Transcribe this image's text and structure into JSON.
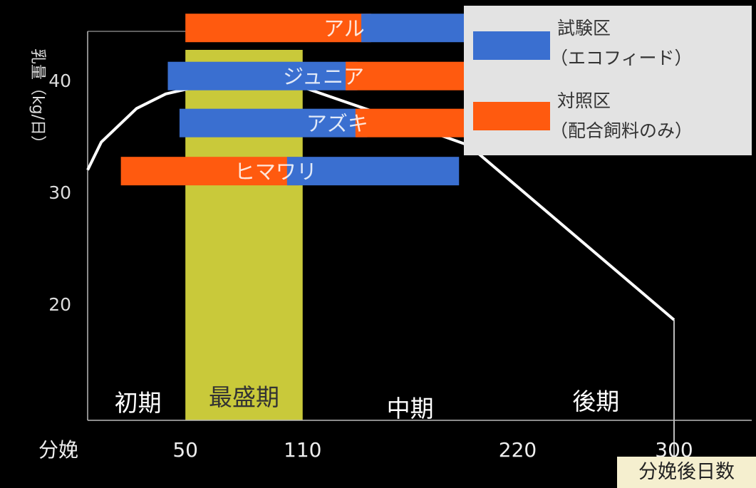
{
  "chart_data": {
    "type": "bar",
    "ylabel": "乳量（kg/日）",
    "xlabel": "分娩後日数",
    "x_ticks": [
      {
        "label": "分娩",
        "value": 0
      },
      {
        "label": "50",
        "value": 50
      },
      {
        "label": "110",
        "value": 110
      },
      {
        "label": "220",
        "value": 220
      },
      {
        "label": "300",
        "value": 300
      }
    ],
    "y_ticks": [
      20,
      30,
      40
    ],
    "ylim": [
      12,
      46
    ],
    "xlim": [
      0,
      300
    ],
    "phases": [
      {
        "label": "初期",
        "start": 0,
        "end": 50
      },
      {
        "label": "最盛期",
        "start": 50,
        "end": 110,
        "highlight": true
      },
      {
        "label": "中期",
        "start": 110,
        "end": 220
      },
      {
        "label": "後期",
        "start": 220,
        "end": 300
      }
    ],
    "lactation_curve": [
      [
        0,
        32
      ],
      [
        7,
        34.5
      ],
      [
        25,
        37.5
      ],
      [
        40,
        38.8
      ],
      [
        55,
        39.4
      ],
      [
        110,
        39.4
      ],
      [
        150,
        37
      ],
      [
        195,
        34.2
      ],
      [
        300,
        18.6
      ]
    ],
    "cows": [
      {
        "name": "アル",
        "y": 44.7,
        "bars": [
          {
            "series": "配合飼料のみ",
            "start": 50,
            "end": 145
          },
          {
            "series": "エコフィード",
            "start": 140,
            "end": 227
          }
        ]
      },
      {
        "name": "ジュニア",
        "y": 40.4,
        "bars": [
          {
            "series": "エコフィード",
            "start": 41,
            "end": 138
          },
          {
            "series": "配合飼料のみ",
            "start": 132,
            "end": 215
          }
        ]
      },
      {
        "name": "アズキ",
        "y": 36.2,
        "bars": [
          {
            "series": "エコフィード",
            "start": 47,
            "end": 143
          },
          {
            "series": "配合飼料のみ",
            "start": 137,
            "end": 223
          }
        ]
      },
      {
        "name": "ヒマワリ",
        "y": 31.9,
        "bars": [
          {
            "series": "配合飼料のみ",
            "start": 17,
            "end": 108
          },
          {
            "series": "エコフィード",
            "start": 102,
            "end": 190
          }
        ]
      }
    ],
    "legend": [
      {
        "name": "試験区",
        "sub": "（エコフィード）",
        "series": "エコフィード",
        "color": "#3a6fd0"
      },
      {
        "name": "対照区",
        "sub": "（配合飼料のみ）",
        "series": "配合飼料のみ",
        "color": "#ff5a0f"
      }
    ],
    "legend_position": "top-right",
    "colors": {
      "エコフィード": "#3a6fd0",
      "配合飼料のみ": "#ff5a0f",
      "highlight": "#c9c93a",
      "curve": "#ffffff",
      "axis": "#bbbbbb"
    }
  }
}
